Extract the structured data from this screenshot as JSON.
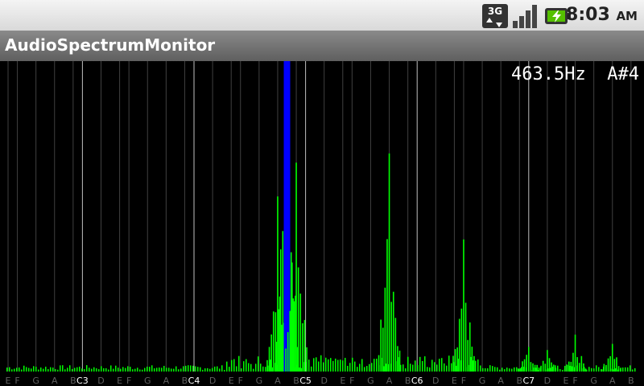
{
  "status_bar": {
    "network_type": "3G",
    "icons": [
      "3g-data-icon",
      "signal-strength-icon",
      "battery-charging-icon"
    ],
    "time": "8:03",
    "ampm": "AM"
  },
  "app": {
    "title": "AudioSpectrumMonitor"
  },
  "readout": {
    "frequency": "463.5Hz",
    "note": "A#4"
  },
  "colors": {
    "spectrum": "#00ff00",
    "peak_marker": "#0000ff",
    "grid_line": "#808080",
    "octave_line": "#ffffff",
    "note_label": "#606060",
    "octave_label": "#ffffff"
  },
  "chart_data": {
    "type": "bar",
    "notes": [
      "E",
      "F",
      "G",
      "A",
      "B",
      "C3",
      "D",
      "E",
      "F",
      "G",
      "A",
      "B",
      "C4",
      "D",
      "E",
      "F",
      "G",
      "A",
      "B",
      "C5",
      "D",
      "E",
      "F",
      "G",
      "A",
      "B",
      "C6",
      "D",
      "E",
      "F",
      "G",
      "A",
      "B",
      "C7",
      "D",
      "E",
      "F",
      "G",
      "A",
      "B"
    ],
    "octave_labels": [
      "C3",
      "C4",
      "C5",
      "C6",
      "C7"
    ],
    "peak": {
      "frequency_hz": 463.5,
      "note": "A#4"
    },
    "spectrum_peaks": [
      {
        "note": "A4",
        "level": 0.57
      },
      {
        "note": "A#4",
        "level": 1.0
      },
      {
        "note": "B4",
        "level": 0.68
      },
      {
        "note": "A5",
        "level": 0.71
      },
      {
        "note": "F6",
        "level": 0.43
      },
      {
        "note": "C7",
        "level": 0.08
      },
      {
        "note": "D7",
        "level": 0.07
      },
      {
        "note": "F7",
        "level": 0.12
      },
      {
        "note": "A7",
        "level": 0.09
      }
    ]
  }
}
